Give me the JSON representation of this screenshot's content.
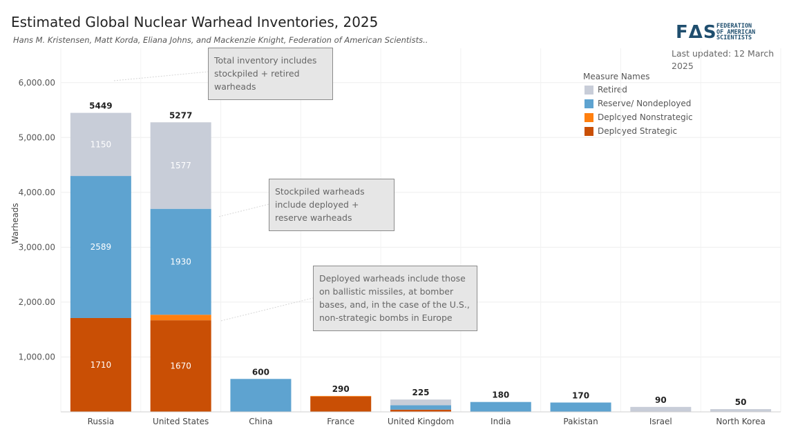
{
  "title": "Estimated Global Nuclear Warhead Inventories, 2025",
  "subtitle": "Hans M. Kristensen, Matt Korda, Eliana Johns, and Mackenzie Knight, Federation of American Scientists..",
  "logo": {
    "mark": "FΔS",
    "line1": "FEDERATION",
    "line2": "OF AMERICAN",
    "line3": "SCIENTISTS"
  },
  "last_updated": "Last updated: 12 March 2025",
  "annotations": [
    "Total inventory includes stockpiled + retired warheads",
    "Stockpiled warheads include deployed + reserve warheads",
    "Deployed warheads include those on ballistic missiles, at bomber bases, and, in the case of the U.S., non-strategic bombs in Europe"
  ],
  "chart_data": {
    "type": "bar",
    "stacked": true,
    "ylabel": "Warheads",
    "xlabel": "",
    "ylim": [
      0,
      6500
    ],
    "yticks": [
      1000,
      2000,
      3000,
      4000,
      5000,
      6000
    ],
    "ytick_labels": [
      "1,000.00",
      "2,000.00",
      "3,000.00",
      "4,000.00",
      "5,000.00",
      "6,000.00"
    ],
    "grid": true,
    "legend_title": "Measure Names",
    "legend_position": "top-right",
    "categories": [
      "Russia",
      "United States",
      "China",
      "France",
      "United Kingdom",
      "India",
      "Pakistan",
      "Israel",
      "North Korea"
    ],
    "totals": [
      5449,
      5277,
      600,
      290,
      225,
      180,
      170,
      90,
      50
    ],
    "series": [
      {
        "name": "Deployed Strategic",
        "color": "#c94f05",
        "values": [
          1710,
          1670,
          0,
          280,
          40,
          0,
          0,
          0,
          0
        ],
        "labels": [
          "1710",
          "1670",
          "",
          "",
          "",
          "",
          "",
          "",
          ""
        ]
      },
      {
        "name": "Deployed Nonstrategic",
        "color": "#ff7f0e",
        "values": [
          0,
          100,
          0,
          10,
          0,
          0,
          0,
          0,
          0
        ],
        "labels": [
          "",
          "",
          "",
          "",
          "",
          "",
          "",
          "",
          ""
        ]
      },
      {
        "name": "Reserve/ Nondeployed",
        "color": "#5ea3d0",
        "values": [
          2589,
          1930,
          600,
          0,
          80,
          180,
          170,
          0,
          0
        ],
        "labels": [
          "2589",
          "1930",
          "",
          "",
          "",
          "",
          "",
          "",
          ""
        ]
      },
      {
        "name": "Retired",
        "color": "#c8cdd8",
        "values": [
          1150,
          1577,
          0,
          0,
          105,
          0,
          0,
          90,
          50
        ],
        "labels": [
          "1150",
          "1577",
          "",
          "",
          "",
          "",
          "",
          "",
          ""
        ]
      }
    ],
    "legend_order": [
      "Retired",
      "Reserve/ Nondeployed",
      "Deployed Nonstrategic",
      "Deployed Strategic"
    ]
  }
}
